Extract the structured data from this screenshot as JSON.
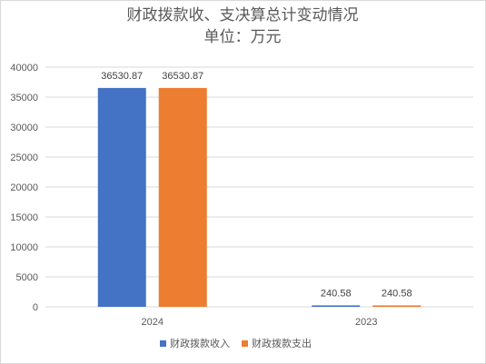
{
  "chart_data": {
    "type": "bar",
    "title": "财政拨款收、支决算总计变动情况",
    "subtitle": "单位：万元",
    "categories": [
      "2024",
      "2023"
    ],
    "series": [
      {
        "name": "财政拨款收入",
        "values": [
          36530.87,
          240.58
        ],
        "labels": [
          "36530.87",
          "240.58"
        ],
        "color": "#4472C4"
      },
      {
        "name": "财政拨款支出",
        "values": [
          36530.87,
          240.58
        ],
        "labels": [
          "36530.87",
          "240.58"
        ],
        "color": "#ED7D31"
      }
    ],
    "ylim": [
      0,
      40000
    ],
    "yticks": [
      "0",
      "5000",
      "10000",
      "15000",
      "20000",
      "25000",
      "30000",
      "35000",
      "40000"
    ],
    "grid": true,
    "legend_position": "bottom",
    "gridline_color": "#d9d9d9"
  }
}
